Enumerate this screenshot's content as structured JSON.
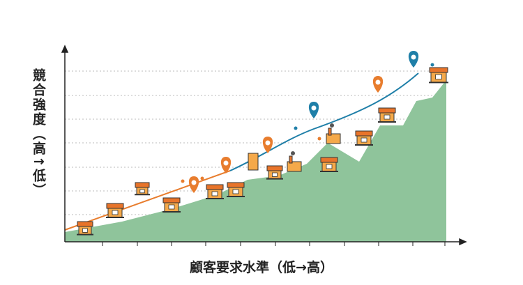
{
  "axes": {
    "y_label": "競合強度（高↑低）",
    "x_label": "顧客要求水準（低→高）"
  }
}
